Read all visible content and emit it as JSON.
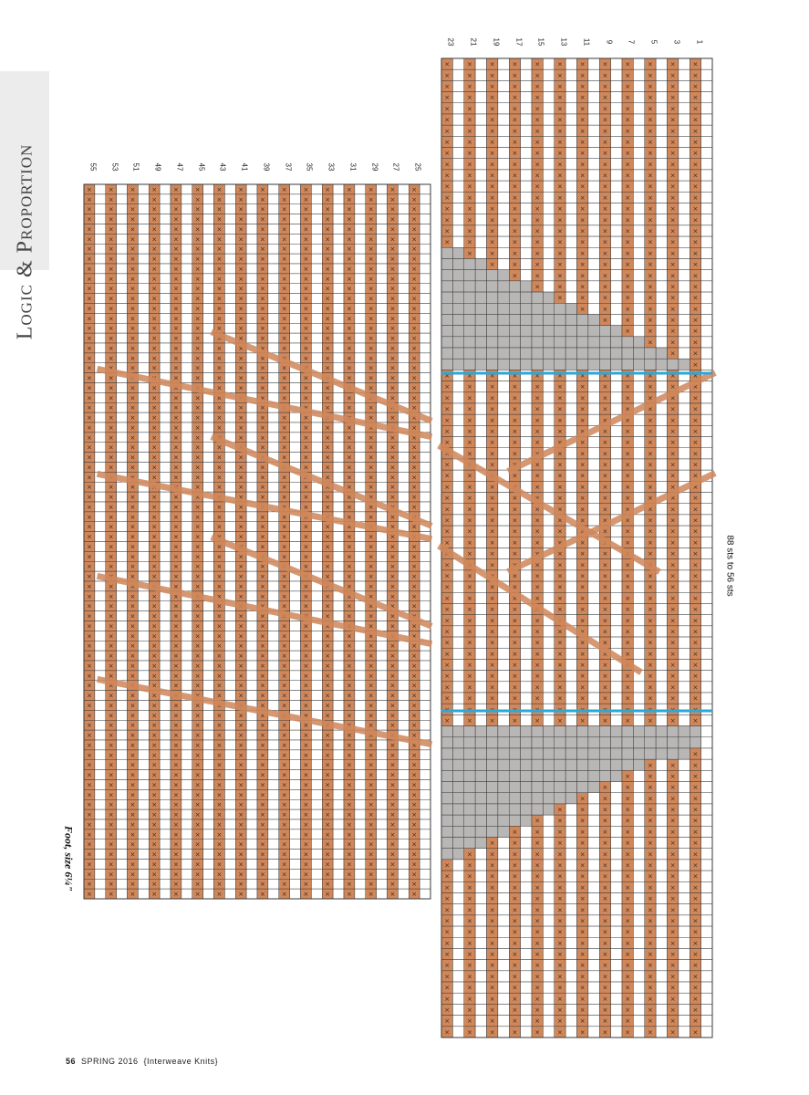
{
  "section_title": "Logic & Proportion",
  "folio": {
    "page_number": "56",
    "issue": "SPRING 2016",
    "magazine": "{Interweave Knits}"
  },
  "chart_data": {
    "type": "knitting-chart",
    "captions": {
      "left_chart": "Foot, size 6¼\"",
      "right_chart": "88 sts to 56 sts"
    },
    "left_chart": {
      "row_numbers": [
        55,
        53,
        51,
        49,
        47,
        45,
        43,
        41,
        39,
        37,
        35,
        33,
        31,
        29,
        27,
        25
      ],
      "rows": 16,
      "stitches": 72
    },
    "right_chart": {
      "row_numbers": [
        23,
        21,
        19,
        17,
        15,
        13,
        11,
        9,
        7,
        5,
        3,
        1
      ],
      "rows": 12,
      "stitches": 88
    },
    "decrease_rows_visible": 11,
    "colors": {
      "purl_cell": "#d0875a",
      "knit_cell": "#ffffff",
      "no_stitch": "#b9b7b6",
      "pattern_repeat_line": "#2aa7d8",
      "grid": "#3a3a3a",
      "side_tab": "#ececec"
    },
    "symbols": [
      "knit",
      "purl",
      "slip-stitch",
      "cable-cross",
      "no-stitch",
      "decrease"
    ]
  }
}
